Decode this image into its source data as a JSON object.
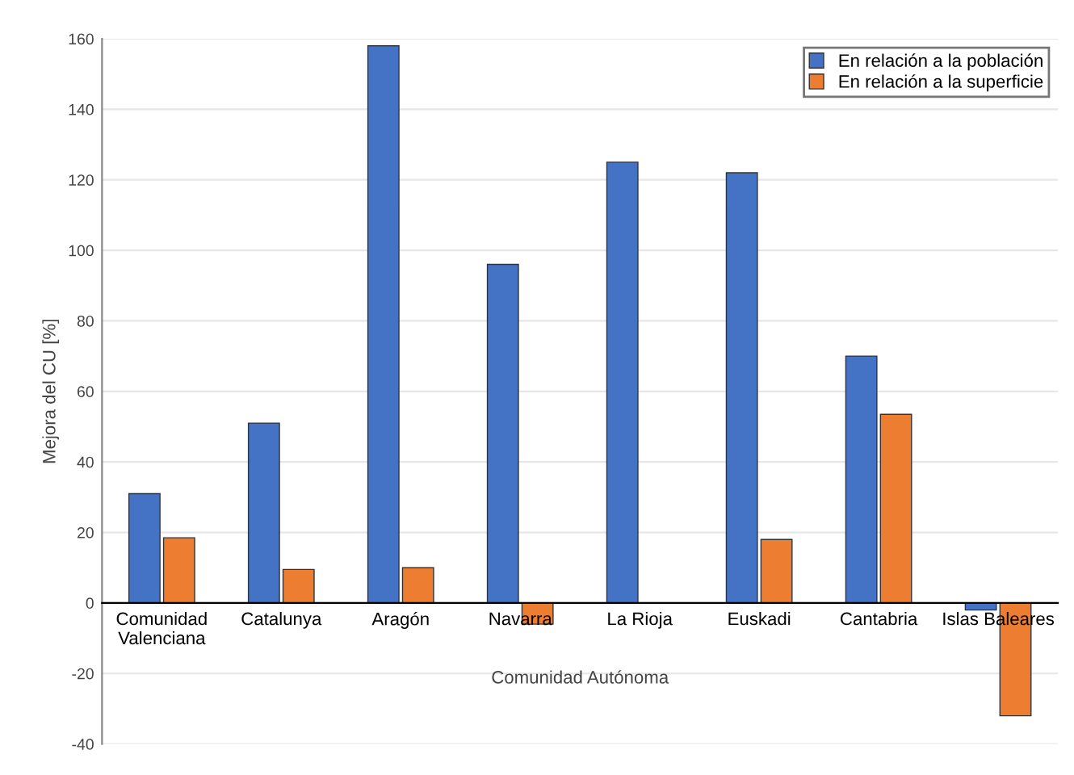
{
  "chart_data": {
    "type": "bar",
    "categories": [
      "Comunidad\nValenciana",
      "Catalunya",
      "Aragón",
      "Navarra",
      "La Rioja",
      "Euskadi",
      "Cantabria",
      "Islas Baleares"
    ],
    "series": [
      {
        "name": "En relación a la población",
        "color": "#4472c4",
        "values": [
          31,
          51,
          158,
          96,
          125,
          122,
          70,
          -2
        ]
      },
      {
        "name": "En relación a la superficie",
        "color": "#ed7d31",
        "values": [
          18.5,
          9.5,
          10,
          -6,
          null,
          18,
          53.5,
          -32
        ]
      }
    ],
    "xlabel": "Comunidad Autónoma",
    "ylabel": "Mejora del CU [%]",
    "ylim": [
      -40,
      160
    ],
    "yticks": [
      -40,
      -20,
      0,
      20,
      40,
      60,
      80,
      100,
      120,
      140,
      160
    ],
    "grid": "y",
    "legend": "top right"
  }
}
